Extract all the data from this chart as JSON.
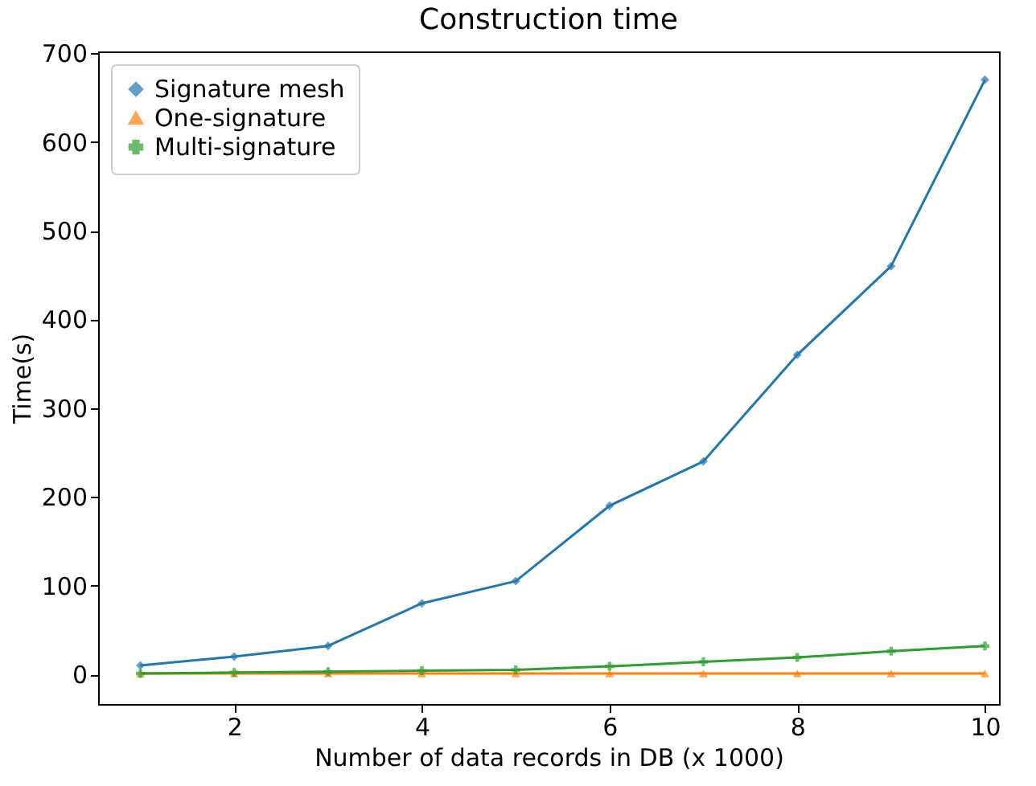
{
  "chart_data": {
    "type": "line",
    "title": "Construction time",
    "xlabel": "Number of data records in DB (x 1000)",
    "ylabel": "Time(s)",
    "x": [
      1,
      2,
      3,
      4,
      5,
      6,
      7,
      8,
      9,
      10
    ],
    "series": [
      {
        "name": "Signature mesh",
        "color": "#1f77b4",
        "marker": "diamond",
        "values": [
          10,
          20,
          32,
          80,
          105,
          190,
          240,
          360,
          460,
          670
        ]
      },
      {
        "name": "One-signature",
        "color": "#ff7f0e",
        "marker": "triangle",
        "values": [
          1,
          1,
          1,
          1,
          1,
          1,
          1,
          1,
          1,
          1
        ]
      },
      {
        "name": "Multi-signature",
        "color": "#2ca02c",
        "marker": "cross",
        "values": [
          1,
          2,
          3,
          4,
          5,
          9,
          14,
          19,
          26,
          32
        ]
      }
    ],
    "xlim": [
      0.55,
      10.15
    ],
    "ylim": [
      -33.5,
      702
    ],
    "xticks": [
      2,
      4,
      6,
      8,
      10
    ],
    "yticks": [
      0,
      100,
      200,
      300,
      400,
      500,
      600,
      700
    ],
    "grid": false,
    "legend": "top left",
    "line_style": "solid"
  }
}
